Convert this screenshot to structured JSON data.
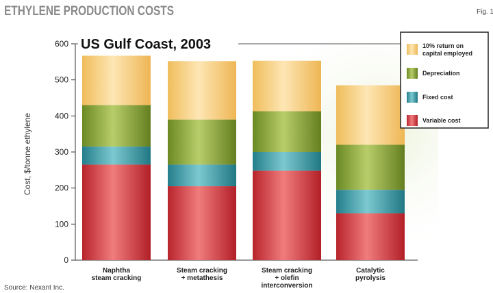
{
  "header": {
    "title": "ETHYLENE PRODUCTION COSTS",
    "fig_label": "Fig. 1"
  },
  "source_note": "Source: Nexant Inc.",
  "colors": {
    "variable": "#d63b40",
    "fixed": "#3a9aa6",
    "depreciation": "#86a23a",
    "return": "#f6cf80"
  },
  "chart_data": {
    "type": "bar",
    "stacked": true,
    "title": "US Gulf Coast, 2003",
    "ylabel": "Cost, $/tonne ethylene",
    "xlabel": "",
    "ylim": [
      0,
      600
    ],
    "yticks": [
      0,
      100,
      200,
      300,
      400,
      500,
      600
    ],
    "grid": false,
    "legend_position": "top-right",
    "categories": [
      [
        "Naphtha",
        "steam cracking"
      ],
      [
        "Steam cracking",
        "+ metathesis"
      ],
      [
        "Steam cracking",
        "+ olefin",
        "interconversion"
      ],
      [
        "Catalytic",
        "pyrolysis"
      ]
    ],
    "series": [
      {
        "name": "Variable cost",
        "color_key": "variable",
        "values": [
          265,
          205,
          248,
          130
        ]
      },
      {
        "name": "Fixed cost",
        "color_key": "fixed",
        "values": [
          50,
          60,
          52,
          65
        ]
      },
      {
        "name": "Depreciation",
        "color_key": "depreciation",
        "values": [
          115,
          125,
          113,
          125
        ]
      },
      {
        "name": [
          "10% return on",
          "capital employed"
        ],
        "color_key": "return",
        "values": [
          137,
          162,
          140,
          165
        ]
      }
    ],
    "legend_order": [
      3,
      2,
      1,
      0
    ]
  }
}
